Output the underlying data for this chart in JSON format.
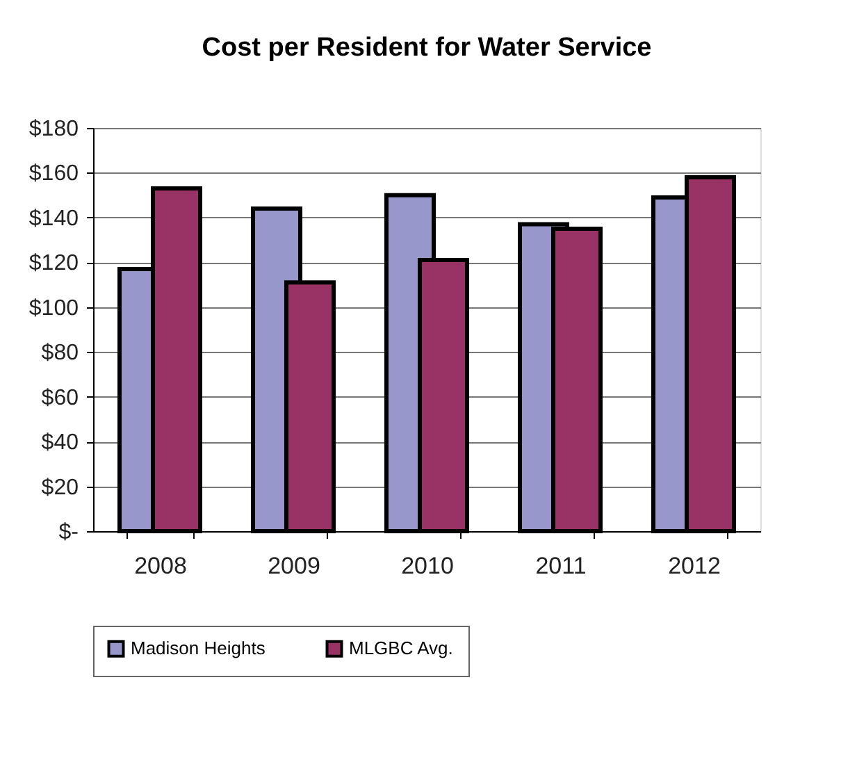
{
  "chart_data": {
    "type": "bar",
    "title": "Cost per Resident for Water Service",
    "categories": [
      "2008",
      "2009",
      "2010",
      "2011",
      "2012"
    ],
    "series": [
      {
        "name": "Madison Heights",
        "color": "#9797cb",
        "values": [
          117,
          144,
          150,
          137,
          149
        ]
      },
      {
        "name": "MLGBC Avg.",
        "color": "#993366",
        "values": [
          153,
          111,
          121,
          135,
          158
        ]
      }
    ],
    "ylim": [
      0,
      180
    ],
    "yticks": [
      {
        "value": 0,
        "label": "$-"
      },
      {
        "value": 20,
        "label": "$20"
      },
      {
        "value": 40,
        "label": "$40"
      },
      {
        "value": 60,
        "label": "$60"
      },
      {
        "value": 80,
        "label": "$80"
      },
      {
        "value": 100,
        "label": "$100"
      },
      {
        "value": 120,
        "label": "$120"
      },
      {
        "value": 140,
        "label": "$140"
      },
      {
        "value": 160,
        "label": "$160"
      },
      {
        "value": 180,
        "label": "$180"
      }
    ],
    "grid": "y",
    "legend": "bottom"
  }
}
